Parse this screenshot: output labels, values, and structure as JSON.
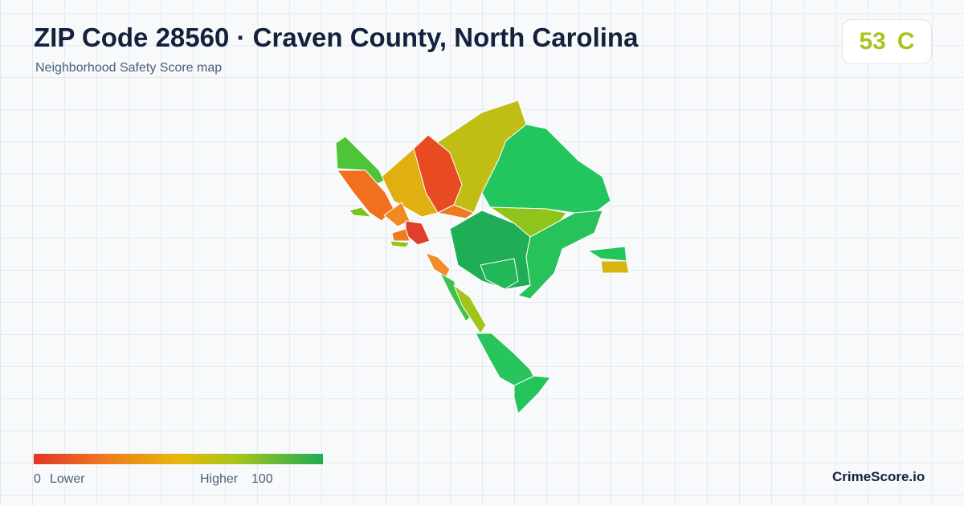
{
  "header": {
    "title": "ZIP Code 28560 · Craven County, North Carolina",
    "subtitle": "Neighborhood Safety Score map"
  },
  "score": {
    "value": "53",
    "grade": "C"
  },
  "legend": {
    "min": 0,
    "min_label": "Lower",
    "max_label": "Higher",
    "max": 100
  },
  "brand": "CrimeScore.io"
}
